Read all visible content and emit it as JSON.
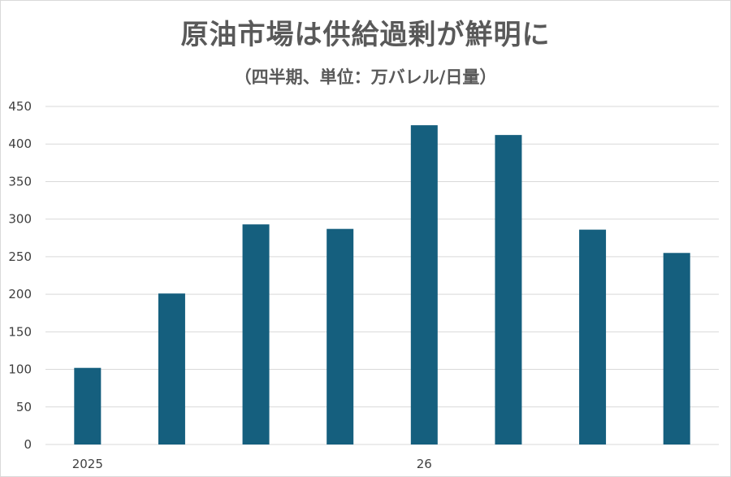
{
  "chart_data": {
    "type": "bar",
    "title": "原油市場は供給過剰が鮮明に",
    "subtitle": "（四半期、単位：万バレル/日量）",
    "categories": [
      "2025",
      "",
      "",
      "",
      "26",
      "",
      "",
      ""
    ],
    "values": [
      102,
      201,
      293,
      287,
      425,
      412,
      286,
      255
    ],
    "ylim": [
      0,
      450
    ],
    "yticks": [
      0,
      50,
      100,
      150,
      200,
      250,
      300,
      350,
      400,
      450
    ],
    "grid": true,
    "legend": "none",
    "colors": {
      "bar": "#155f7e",
      "grid": "#d9d9d9",
      "text": "#595959"
    }
  }
}
